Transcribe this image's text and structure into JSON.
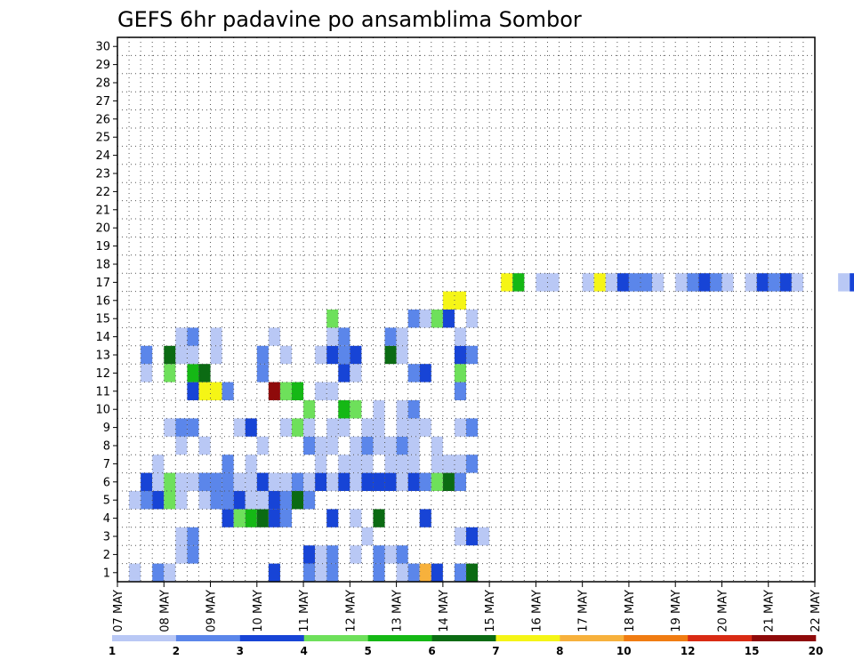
{
  "chart_data": {
    "type": "heatmap",
    "title": "GEFS 6hr padavine po ansamblima Sombor",
    "x_tick_labels": [
      "07 MAY",
      "08 MAY",
      "09 MAY",
      "10 MAY",
      "11 MAY",
      "12 MAY",
      "13 MAY",
      "14 MAY",
      "15 MAY",
      "16 MAY",
      "17 MAY",
      "18 MAY",
      "19 MAY",
      "20 MAY",
      "21 MAY",
      "22 MAY"
    ],
    "y_tick_labels": [
      "1",
      "2",
      "3",
      "4",
      "5",
      "6",
      "7",
      "8",
      "9",
      "10",
      "11",
      "12",
      "13",
      "14",
      "15",
      "16",
      "17",
      "18",
      "19",
      "20",
      "21",
      "22",
      "23",
      "24",
      "25",
      "26",
      "27",
      "28",
      "29",
      "30"
    ],
    "colorbar": {
      "labels": [
        "1",
        "2",
        "3",
        "4",
        "5",
        "6",
        "7",
        "8",
        "10",
        "12",
        "15",
        "20"
      ],
      "colors": [
        "#b9c8f5",
        "#5b86ea",
        "#1744d6",
        "#6ee05b",
        "#15b815",
        "#0b6b13",
        "#f5f516",
        "#f7b13c",
        "#f07c12",
        "#d92b14",
        "#8f0a0a"
      ]
    },
    "steps_per_day": 4,
    "cells": [
      [
        1,
        1,
        1
      ],
      [
        2,
        3,
        1
      ],
      [
        1,
        4,
        1
      ],
      [
        3,
        13,
        1
      ],
      [
        2,
        16,
        1
      ],
      [
        1,
        17,
        1
      ],
      [
        2,
        18,
        1
      ],
      [
        2,
        22,
        1
      ],
      [
        1,
        24,
        1
      ],
      [
        2,
        25,
        1
      ],
      [
        8,
        26,
        1
      ],
      [
        3,
        27,
        1
      ],
      [
        2,
        29,
        1
      ],
      [
        1,
        30,
        1
      ],
      [
        6,
        30,
        1
      ],
      [
        1,
        5,
        2
      ],
      [
        2,
        6,
        2
      ],
      [
        3,
        16,
        2
      ],
      [
        1,
        17,
        2
      ],
      [
        2,
        18,
        2
      ],
      [
        1,
        20,
        2
      ],
      [
        2,
        22,
        2
      ],
      [
        1,
        23,
        2
      ],
      [
        2,
        24,
        2
      ],
      [
        1,
        5,
        3
      ],
      [
        2,
        6,
        3
      ],
      [
        1,
        21,
        3
      ],
      [
        1,
        29,
        3
      ],
      [
        3,
        30,
        3
      ],
      [
        1,
        31,
        3
      ],
      [
        3,
        9,
        4
      ],
      [
        4,
        10,
        4
      ],
      [
        5,
        11,
        4
      ],
      [
        6,
        12,
        4
      ],
      [
        3,
        13,
        4
      ],
      [
        2,
        14,
        4
      ],
      [
        3,
        18,
        4
      ],
      [
        1,
        20,
        4
      ],
      [
        6,
        22,
        4
      ],
      [
        3,
        26,
        4
      ],
      [
        1,
        1,
        5
      ],
      [
        2,
        2,
        5
      ],
      [
        3,
        3,
        5
      ],
      [
        4,
        4,
        5
      ],
      [
        1,
        5,
        5
      ],
      [
        1,
        7,
        5
      ],
      [
        2,
        8,
        5
      ],
      [
        2,
        9,
        5
      ],
      [
        3,
        10,
        5
      ],
      [
        1,
        11,
        5
      ],
      [
        1,
        12,
        5
      ],
      [
        3,
        13,
        5
      ],
      [
        2,
        14,
        5
      ],
      [
        6,
        15,
        5
      ],
      [
        2,
        16,
        5
      ],
      [
        3,
        2,
        6
      ],
      [
        1,
        3,
        6
      ],
      [
        4,
        4,
        6
      ],
      [
        1,
        5,
        6
      ],
      [
        1,
        6,
        6
      ],
      [
        2,
        7,
        6
      ],
      [
        2,
        8,
        6
      ],
      [
        2,
        9,
        6
      ],
      [
        1,
        10,
        6
      ],
      [
        1,
        11,
        6
      ],
      [
        3,
        12,
        6
      ],
      [
        1,
        13,
        6
      ],
      [
        1,
        14,
        6
      ],
      [
        2,
        15,
        6
      ],
      [
        1,
        16,
        6
      ],
      [
        3,
        17,
        6
      ],
      [
        1,
        18,
        6
      ],
      [
        3,
        19,
        6
      ],
      [
        1,
        20,
        6
      ],
      [
        3,
        21,
        6
      ],
      [
        3,
        22,
        6
      ],
      [
        3,
        23,
        6
      ],
      [
        1,
        24,
        6
      ],
      [
        3,
        25,
        6
      ],
      [
        2,
        26,
        6
      ],
      [
        4,
        27,
        6
      ],
      [
        6,
        28,
        6
      ],
      [
        2,
        29,
        6
      ],
      [
        1,
        3,
        7
      ],
      [
        2,
        9,
        7
      ],
      [
        1,
        11,
        7
      ],
      [
        1,
        17,
        7
      ],
      [
        1,
        19,
        7
      ],
      [
        1,
        20,
        7
      ],
      [
        1,
        21,
        7
      ],
      [
        1,
        23,
        7
      ],
      [
        1,
        24,
        7
      ],
      [
        1,
        25,
        7
      ],
      [
        1,
        27,
        7
      ],
      [
        1,
        28,
        7
      ],
      [
        1,
        29,
        7
      ],
      [
        2,
        30,
        7
      ],
      [
        1,
        5,
        8
      ],
      [
        1,
        7,
        8
      ],
      [
        1,
        12,
        8
      ],
      [
        2,
        16,
        8
      ],
      [
        1,
        17,
        8
      ],
      [
        1,
        18,
        8
      ],
      [
        1,
        20,
        8
      ],
      [
        2,
        21,
        8
      ],
      [
        1,
        22,
        8
      ],
      [
        1,
        23,
        8
      ],
      [
        2,
        24,
        8
      ],
      [
        1,
        25,
        8
      ],
      [
        1,
        27,
        8
      ],
      [
        1,
        4,
        9
      ],
      [
        2,
        5,
        9
      ],
      [
        2,
        6,
        9
      ],
      [
        1,
        10,
        9
      ],
      [
        3,
        11,
        9
      ],
      [
        1,
        14,
        9
      ],
      [
        4,
        15,
        9
      ],
      [
        1,
        16,
        9
      ],
      [
        1,
        18,
        9
      ],
      [
        1,
        19,
        9
      ],
      [
        1,
        21,
        9
      ],
      [
        1,
        22,
        9
      ],
      [
        1,
        24,
        9
      ],
      [
        1,
        25,
        9
      ],
      [
        1,
        26,
        9
      ],
      [
        1,
        29,
        9
      ],
      [
        2,
        30,
        9
      ],
      [
        4,
        16,
        10
      ],
      [
        5,
        19,
        10
      ],
      [
        4,
        20,
        10
      ],
      [
        1,
        22,
        10
      ],
      [
        1,
        24,
        10
      ],
      [
        2,
        25,
        10
      ],
      [
        3,
        6,
        11
      ],
      [
        7,
        7,
        11
      ],
      [
        7,
        8,
        11
      ],
      [
        2,
        9,
        11
      ],
      [
        11,
        13,
        11
      ],
      [
        4,
        14,
        11
      ],
      [
        5,
        15,
        11
      ],
      [
        1,
        17,
        11
      ],
      [
        1,
        18,
        11
      ],
      [
        2,
        29,
        11
      ],
      [
        1,
        2,
        12
      ],
      [
        4,
        4,
        12
      ],
      [
        5,
        6,
        12
      ],
      [
        6,
        7,
        12
      ],
      [
        2,
        12,
        12
      ],
      [
        3,
        19,
        12
      ],
      [
        1,
        20,
        12
      ],
      [
        2,
        25,
        12
      ],
      [
        3,
        26,
        12
      ],
      [
        4,
        29,
        12
      ],
      [
        2,
        2,
        13
      ],
      [
        6,
        4,
        13
      ],
      [
        1,
        5,
        13
      ],
      [
        1,
        6,
        13
      ],
      [
        1,
        8,
        13
      ],
      [
        2,
        12,
        13
      ],
      [
        1,
        14,
        13
      ],
      [
        1,
        17,
        13
      ],
      [
        3,
        18,
        13
      ],
      [
        2,
        19,
        13
      ],
      [
        3,
        20,
        13
      ],
      [
        6,
        23,
        13
      ],
      [
        1,
        24,
        13
      ],
      [
        3,
        29,
        13
      ],
      [
        2,
        30,
        13
      ],
      [
        1,
        5,
        14
      ],
      [
        2,
        6,
        14
      ],
      [
        1,
        8,
        14
      ],
      [
        1,
        13,
        14
      ],
      [
        1,
        18,
        14
      ],
      [
        2,
        19,
        14
      ],
      [
        2,
        23,
        14
      ],
      [
        1,
        24,
        14
      ],
      [
        1,
        29,
        14
      ],
      [
        4,
        18,
        15
      ],
      [
        2,
        25,
        15
      ],
      [
        1,
        26,
        15
      ],
      [
        4,
        27,
        15
      ],
      [
        3,
        28,
        15
      ],
      [
        1,
        30,
        15
      ],
      [
        7,
        28,
        16
      ],
      [
        7,
        29,
        16
      ],
      [
        7,
        33,
        17
      ],
      [
        5,
        34,
        17
      ],
      [
        1,
        36,
        17
      ],
      [
        1,
        37,
        17
      ],
      [
        1,
        40,
        17
      ],
      [
        7,
        41,
        17
      ],
      [
        1,
        42,
        17
      ],
      [
        3,
        43,
        17
      ],
      [
        2,
        44,
        17
      ],
      [
        2,
        45,
        17
      ],
      [
        1,
        46,
        17
      ],
      [
        1,
        48,
        17
      ],
      [
        2,
        49,
        17
      ],
      [
        3,
        50,
        17
      ],
      [
        2,
        51,
        17
      ],
      [
        1,
        52,
        17
      ],
      [
        1,
        54,
        17
      ],
      [
        3,
        55,
        17
      ],
      [
        2,
        56,
        17
      ],
      [
        3,
        57,
        17
      ],
      [
        1,
        58,
        17
      ],
      [
        1,
        62,
        17
      ],
      [
        3,
        63,
        17
      ],
      [
        1,
        64,
        17
      ],
      [
        5,
        65,
        17
      ],
      [
        1,
        67,
        17
      ],
      [
        4,
        68,
        17
      ],
      [
        1,
        69,
        17
      ],
      [
        2,
        70,
        17
      ],
      [
        3,
        71,
        17
      ],
      [
        1,
        72,
        17
      ],
      [
        3,
        73,
        17
      ],
      [
        2,
        76,
        17
      ],
      [
        3,
        77,
        17
      ],
      [
        1,
        78,
        17
      ],
      [
        3,
        79,
        17
      ],
      [
        4,
        80,
        17
      ],
      [
        2,
        81,
        17
      ],
      [
        1,
        82,
        17
      ],
      [
        1,
        83,
        17
      ],
      [
        2,
        84,
        17
      ],
      [
        1,
        85,
        17
      ],
      [
        3,
        86,
        17
      ],
      [
        2,
        87,
        17
      ],
      [
        1,
        88,
        17
      ],
      [
        1,
        89,
        17
      ],
      [
        3,
        90,
        17
      ],
      [
        1,
        91,
        17
      ],
      [
        2,
        92,
        17
      ],
      [
        1,
        94,
        17
      ],
      [
        2,
        96,
        17
      ],
      [
        1,
        97,
        17
      ],
      [
        1,
        98,
        17
      ],
      [
        2,
        99,
        17
      ],
      [
        2,
        100,
        17
      ],
      [
        2,
        101,
        17
      ],
      [
        2,
        102,
        17
      ],
      [
        1,
        103,
        17
      ],
      [
        1,
        104,
        17
      ],
      [
        2,
        105,
        17
      ],
      [
        4,
        106,
        17
      ],
      [
        1,
        107,
        17
      ]
    ]
  }
}
